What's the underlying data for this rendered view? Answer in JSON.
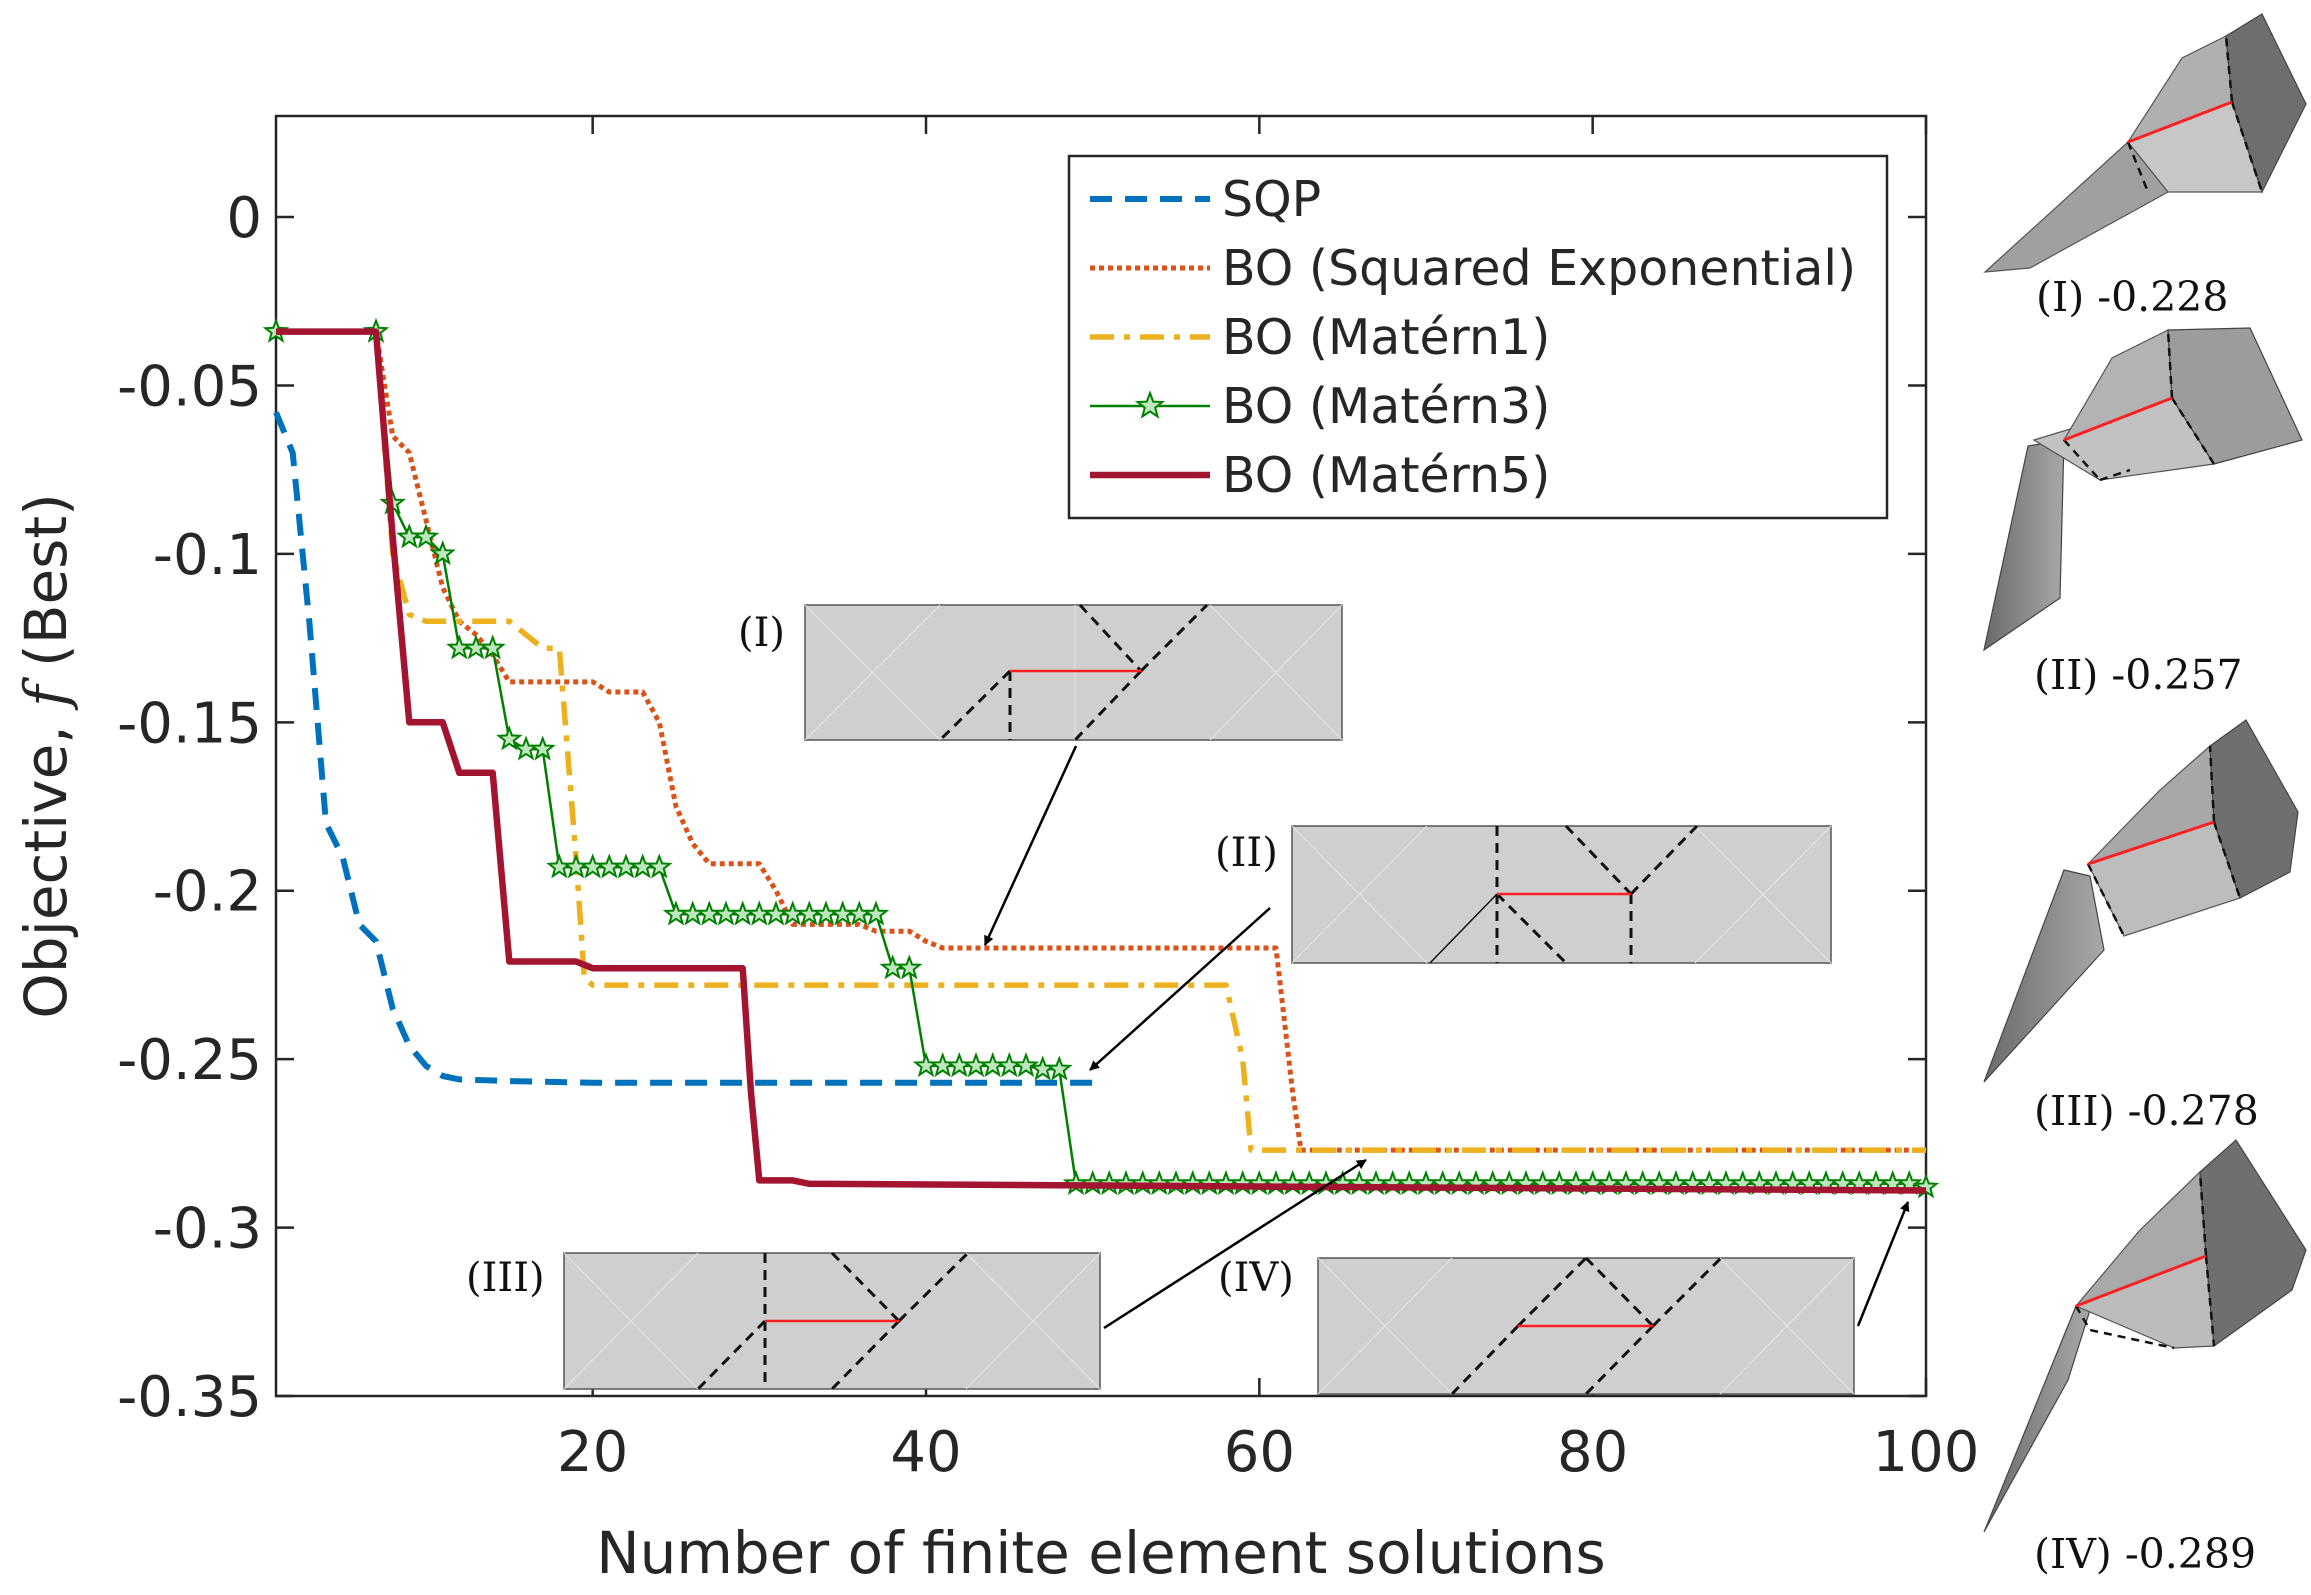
{
  "chart_data": {
    "type": "line",
    "title": "",
    "xlabel": "Number of finite element solutions",
    "ylabel": "Objective, f (Best)",
    "ylabel_parts": {
      "prefix": "Objective, ",
      "symbol": "f",
      "suffix": " (Best)"
    },
    "xlim": [
      1,
      100
    ],
    "ylim": [
      -0.35,
      0.03
    ],
    "xticks": [
      20,
      40,
      60,
      80,
      100
    ],
    "xtick_labels": [
      "20",
      "40",
      "60",
      "80",
      "100"
    ],
    "yticks": [
      0,
      -0.05,
      -0.1,
      -0.15,
      -0.2,
      -0.25,
      -0.3,
      -0.35
    ],
    "ytick_labels": [
      "0",
      "-0.05",
      "-0.1",
      "-0.15",
      "-0.2",
      "-0.25",
      "-0.3",
      "-0.35"
    ],
    "grid": false,
    "legend_position": "top-right",
    "series": [
      {
        "name": "SQP",
        "color": "#0072BD",
        "style": "dashed",
        "points": [
          [
            1,
            -0.058
          ],
          [
            2,
            -0.07
          ],
          [
            3,
            -0.12
          ],
          [
            4,
            -0.18
          ],
          [
            5,
            -0.19
          ],
          [
            6,
            -0.21
          ],
          [
            7,
            -0.215
          ],
          [
            8,
            -0.235
          ],
          [
            9,
            -0.246
          ],
          [
            10,
            -0.252
          ],
          [
            11,
            -0.255
          ],
          [
            12,
            -0.256
          ],
          [
            15,
            -0.2565
          ],
          [
            20,
            -0.257
          ],
          [
            30,
            -0.257
          ],
          [
            50,
            -0.257
          ]
        ]
      },
      {
        "name": "BO (Squared Exponential)",
        "color": "#D95319",
        "style": "dotted",
        "points": [
          [
            1,
            -0.034
          ],
          [
            7,
            -0.034
          ],
          [
            8,
            -0.065
          ],
          [
            9,
            -0.07
          ],
          [
            10,
            -0.09
          ],
          [
            11,
            -0.11
          ],
          [
            12,
            -0.12
          ],
          [
            13,
            -0.124
          ],
          [
            14,
            -0.13
          ],
          [
            15,
            -0.138
          ],
          [
            20,
            -0.138
          ],
          [
            21,
            -0.141
          ],
          [
            23,
            -0.141
          ],
          [
            24,
            -0.15
          ],
          [
            25,
            -0.175
          ],
          [
            26,
            -0.186
          ],
          [
            27,
            -0.192
          ],
          [
            30,
            -0.192
          ],
          [
            31,
            -0.2
          ],
          [
            32,
            -0.21
          ],
          [
            36,
            -0.21
          ],
          [
            37,
            -0.212
          ],
          [
            39,
            -0.212
          ],
          [
            40,
            -0.215
          ],
          [
            41,
            -0.217
          ],
          [
            61,
            -0.217
          ],
          [
            62,
            -0.26
          ],
          [
            62.5,
            -0.277
          ],
          [
            100,
            -0.277
          ]
        ]
      },
      {
        "name": "BO (Matérn1)",
        "color": "#EDB120",
        "style": "dashdot",
        "points": [
          [
            1,
            -0.034
          ],
          [
            7,
            -0.034
          ],
          [
            8,
            -0.1
          ],
          [
            9,
            -0.118
          ],
          [
            10,
            -0.12
          ],
          [
            15,
            -0.12
          ],
          [
            16,
            -0.124
          ],
          [
            17,
            -0.128
          ],
          [
            18,
            -0.128
          ],
          [
            19,
            -0.19
          ],
          [
            19.5,
            -0.226
          ],
          [
            20,
            -0.228
          ],
          [
            58,
            -0.228
          ],
          [
            59,
            -0.25
          ],
          [
            59.5,
            -0.277
          ],
          [
            100,
            -0.277
          ]
        ]
      },
      {
        "name": "BO (Matérn3)",
        "color": "#008000",
        "style": "solid-star",
        "points": [
          [
            1,
            -0.034
          ],
          [
            7,
            -0.034
          ],
          [
            8,
            -0.085
          ],
          [
            9,
            -0.095
          ],
          [
            10,
            -0.095
          ],
          [
            11,
            -0.1
          ],
          [
            12,
            -0.128
          ],
          [
            13,
            -0.128
          ],
          [
            14,
            -0.128
          ],
          [
            15,
            -0.155
          ],
          [
            16,
            -0.158
          ],
          [
            17,
            -0.158
          ],
          [
            18,
            -0.193
          ],
          [
            19,
            -0.193
          ],
          [
            20,
            -0.193
          ],
          [
            21,
            -0.193
          ],
          [
            22,
            -0.193
          ],
          [
            23,
            -0.193
          ],
          [
            24,
            -0.193
          ],
          [
            25,
            -0.207
          ],
          [
            26,
            -0.207
          ],
          [
            27,
            -0.207
          ],
          [
            28,
            -0.207
          ],
          [
            29,
            -0.207
          ],
          [
            30,
            -0.207
          ],
          [
            31,
            -0.207
          ],
          [
            32,
            -0.207
          ],
          [
            33,
            -0.207
          ],
          [
            34,
            -0.207
          ],
          [
            35,
            -0.207
          ],
          [
            36,
            -0.207
          ],
          [
            37,
            -0.207
          ],
          [
            38,
            -0.223
          ],
          [
            39,
            -0.223
          ],
          [
            40,
            -0.252
          ],
          [
            41,
            -0.252
          ],
          [
            42,
            -0.252
          ],
          [
            43,
            -0.252
          ],
          [
            44,
            -0.252
          ],
          [
            45,
            -0.252
          ],
          [
            46,
            -0.252
          ],
          [
            47,
            -0.253
          ],
          [
            48,
            -0.253
          ],
          [
            49,
            -0.287
          ],
          [
            50,
            -0.287
          ],
          [
            51,
            -0.287
          ],
          [
            52,
            -0.287
          ],
          [
            53,
            -0.287
          ],
          [
            54,
            -0.287
          ],
          [
            55,
            -0.287
          ],
          [
            56,
            -0.287
          ],
          [
            57,
            -0.287
          ],
          [
            58,
            -0.287
          ],
          [
            59,
            -0.287
          ],
          [
            60,
            -0.287
          ],
          [
            61,
            -0.287
          ],
          [
            62,
            -0.287
          ],
          [
            63,
            -0.287
          ],
          [
            64,
            -0.287
          ],
          [
            65,
            -0.287
          ],
          [
            66,
            -0.287
          ],
          [
            67,
            -0.287
          ],
          [
            68,
            -0.287
          ],
          [
            69,
            -0.287
          ],
          [
            70,
            -0.287
          ],
          [
            71,
            -0.287
          ],
          [
            72,
            -0.287
          ],
          [
            73,
            -0.287
          ],
          [
            74,
            -0.287
          ],
          [
            75,
            -0.287
          ],
          [
            76,
            -0.287
          ],
          [
            77,
            -0.287
          ],
          [
            78,
            -0.287
          ],
          [
            79,
            -0.287
          ],
          [
            80,
            -0.287
          ],
          [
            81,
            -0.287
          ],
          [
            82,
            -0.287
          ],
          [
            83,
            -0.287
          ],
          [
            84,
            -0.287
          ],
          [
            85,
            -0.287
          ],
          [
            86,
            -0.287
          ],
          [
            87,
            -0.287
          ],
          [
            88,
            -0.287
          ],
          [
            89,
            -0.287
          ],
          [
            90,
            -0.287
          ],
          [
            91,
            -0.287
          ],
          [
            92,
            -0.287
          ],
          [
            93,
            -0.287
          ],
          [
            94,
            -0.287
          ],
          [
            95,
            -0.287
          ],
          [
            96,
            -0.287
          ],
          [
            97,
            -0.287
          ],
          [
            98,
            -0.287
          ],
          [
            99,
            -0.287
          ],
          [
            100,
            -0.288
          ]
        ]
      },
      {
        "name": "BO (Matérn5)",
        "color": "#A2142F",
        "style": "solid-thick",
        "points": [
          [
            1,
            -0.034
          ],
          [
            7,
            -0.034
          ],
          [
            8,
            -0.095
          ],
          [
            9,
            -0.15
          ],
          [
            11,
            -0.15
          ],
          [
            12,
            -0.165
          ],
          [
            14,
            -0.165
          ],
          [
            15,
            -0.221
          ],
          [
            19,
            -0.221
          ],
          [
            20,
            -0.223
          ],
          [
            29,
            -0.223
          ],
          [
            29.5,
            -0.26
          ],
          [
            30,
            -0.286
          ],
          [
            32,
            -0.286
          ],
          [
            33,
            -0.287
          ],
          [
            100,
            -0.289
          ]
        ]
      }
    ],
    "insets": [
      {
        "label": "(I)",
        "arrow_target": [
          43,
          -0.217
        ]
      },
      {
        "label": "(II)",
        "arrow_target": [
          49.5,
          -0.257
        ]
      },
      {
        "label": "(III)",
        "arrow_target": [
          68,
          -0.277
        ]
      },
      {
        "label": "(IV)",
        "arrow_target": [
          99.5,
          -0.288
        ]
      }
    ],
    "models": [
      {
        "label": "(I) -0.228"
      },
      {
        "label": "(II) -0.257"
      },
      {
        "label": "(III) -0.278"
      },
      {
        "label": "(IV) -0.289"
      }
    ]
  }
}
